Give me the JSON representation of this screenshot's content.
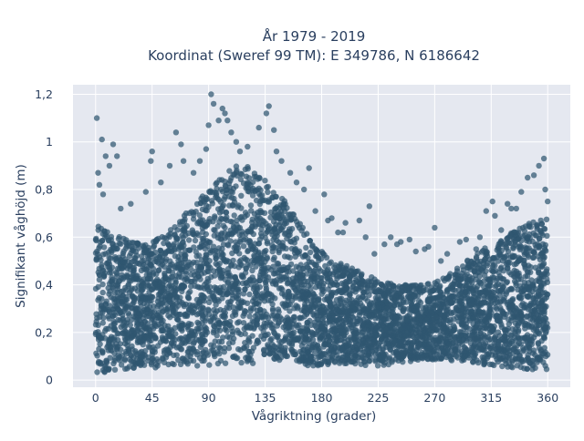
{
  "chart_data": {
    "type": "scatter",
    "title_lines": [
      "År 1979 - 2019",
      "Koordinat (Sweref 99 TM): E 349786, N 6186642"
    ],
    "xlabel": "Vågriktning (grader)",
    "ylabel": "Signifikant våghöjd (m)",
    "xlim": [
      -18,
      378
    ],
    "ylim": [
      -0.03,
      1.24
    ],
    "xticks": [
      0,
      45,
      90,
      135,
      180,
      225,
      270,
      315,
      360
    ],
    "xtick_labels": [
      "0",
      "45",
      "90",
      "135",
      "180",
      "225",
      "270",
      "315",
      "360"
    ],
    "yticks": [
      0,
      0.2,
      0.4,
      0.6,
      0.8,
      1,
      1.2
    ],
    "ytick_labels": [
      "0",
      "0,2",
      "0,4",
      "0,6",
      "0,8",
      "1",
      "1,2"
    ],
    "grid": true,
    "marker_color": "#2f5670",
    "background_color": "#e5e8f0",
    "envelope": {
      "x": [
        0,
        10,
        20,
        30,
        45,
        60,
        75,
        90,
        100,
        110,
        120,
        135,
        150,
        160,
        170,
        180,
        190,
        200,
        210,
        225,
        240,
        255,
        270,
        285,
        300,
        315,
        330,
        345,
        360
      ],
      "y_low": [
        0.03,
        0.03,
        0.04,
        0.05,
        0.05,
        0.06,
        0.06,
        0.06,
        0.07,
        0.07,
        0.07,
        0.07,
        0.07,
        0.07,
        0.06,
        0.06,
        0.06,
        0.06,
        0.06,
        0.06,
        0.07,
        0.08,
        0.08,
        0.08,
        0.07,
        0.06,
        0.05,
        0.04,
        0.03
      ],
      "y_high": [
        0.66,
        0.62,
        0.6,
        0.58,
        0.58,
        0.64,
        0.72,
        0.8,
        0.86,
        0.9,
        0.9,
        0.84,
        0.76,
        0.68,
        0.6,
        0.54,
        0.5,
        0.48,
        0.46,
        0.42,
        0.4,
        0.4,
        0.42,
        0.46,
        0.52,
        0.58,
        0.62,
        0.66,
        0.68
      ]
    },
    "outliers": [
      {
        "x": 1,
        "y": 1.1
      },
      {
        "x": 5,
        "y": 1.01
      },
      {
        "x": 14,
        "y": 0.99
      },
      {
        "x": 2,
        "y": 0.87
      },
      {
        "x": 8,
        "y": 0.94
      },
      {
        "x": 11,
        "y": 0.9
      },
      {
        "x": 17,
        "y": 0.94
      },
      {
        "x": 3,
        "y": 0.82
      },
      {
        "x": 6,
        "y": 0.78
      },
      {
        "x": 20,
        "y": 0.72
      },
      {
        "x": 28,
        "y": 0.74
      },
      {
        "x": 40,
        "y": 0.79
      },
      {
        "x": 44,
        "y": 0.92
      },
      {
        "x": 45,
        "y": 0.96
      },
      {
        "x": 52,
        "y": 0.83
      },
      {
        "x": 59,
        "y": 0.9
      },
      {
        "x": 64,
        "y": 1.04
      },
      {
        "x": 68,
        "y": 0.99
      },
      {
        "x": 70,
        "y": 0.92
      },
      {
        "x": 78,
        "y": 0.87
      },
      {
        "x": 83,
        "y": 0.92
      },
      {
        "x": 88,
        "y": 0.97
      },
      {
        "x": 90,
        "y": 1.07
      },
      {
        "x": 92,
        "y": 1.2
      },
      {
        "x": 94,
        "y": 1.16
      },
      {
        "x": 98,
        "y": 1.09
      },
      {
        "x": 101,
        "y": 1.14
      },
      {
        "x": 103,
        "y": 1.12
      },
      {
        "x": 105,
        "y": 1.09
      },
      {
        "x": 108,
        "y": 1.04
      },
      {
        "x": 112,
        "y": 1.0
      },
      {
        "x": 115,
        "y": 0.96
      },
      {
        "x": 121,
        "y": 0.98
      },
      {
        "x": 130,
        "y": 1.06
      },
      {
        "x": 136,
        "y": 1.12
      },
      {
        "x": 138,
        "y": 1.15
      },
      {
        "x": 142,
        "y": 1.05
      },
      {
        "x": 144,
        "y": 0.96
      },
      {
        "x": 148,
        "y": 0.92
      },
      {
        "x": 155,
        "y": 0.87
      },
      {
        "x": 160,
        "y": 0.83
      },
      {
        "x": 166,
        "y": 0.8
      },
      {
        "x": 170,
        "y": 0.89
      },
      {
        "x": 175,
        "y": 0.71
      },
      {
        "x": 182,
        "y": 0.78
      },
      {
        "x": 185,
        "y": 0.67
      },
      {
        "x": 188,
        "y": 0.68
      },
      {
        "x": 193,
        "y": 0.62
      },
      {
        "x": 197,
        "y": 0.62
      },
      {
        "x": 199,
        "y": 0.66
      },
      {
        "x": 210,
        "y": 0.67
      },
      {
        "x": 215,
        "y": 0.6
      },
      {
        "x": 218,
        "y": 0.73
      },
      {
        "x": 222,
        "y": 0.53
      },
      {
        "x": 230,
        "y": 0.57
      },
      {
        "x": 235,
        "y": 0.6
      },
      {
        "x": 240,
        "y": 0.57
      },
      {
        "x": 243,
        "y": 0.58
      },
      {
        "x": 250,
        "y": 0.59
      },
      {
        "x": 255,
        "y": 0.54
      },
      {
        "x": 262,
        "y": 0.55
      },
      {
        "x": 265,
        "y": 0.56
      },
      {
        "x": 270,
        "y": 0.64
      },
      {
        "x": 275,
        "y": 0.5
      },
      {
        "x": 280,
        "y": 0.53
      },
      {
        "x": 290,
        "y": 0.58
      },
      {
        "x": 295,
        "y": 0.59
      },
      {
        "x": 303,
        "y": 0.55
      },
      {
        "x": 306,
        "y": 0.6
      },
      {
        "x": 311,
        "y": 0.71
      },
      {
        "x": 316,
        "y": 0.75
      },
      {
        "x": 318,
        "y": 0.69
      },
      {
        "x": 323,
        "y": 0.63
      },
      {
        "x": 328,
        "y": 0.74
      },
      {
        "x": 331,
        "y": 0.72
      },
      {
        "x": 335,
        "y": 0.72
      },
      {
        "x": 339,
        "y": 0.79
      },
      {
        "x": 344,
        "y": 0.85
      },
      {
        "x": 349,
        "y": 0.86
      },
      {
        "x": 353,
        "y": 0.9
      },
      {
        "x": 357,
        "y": 0.93
      },
      {
        "x": 358,
        "y": 0.8
      },
      {
        "x": 360,
        "y": 0.75
      }
    ]
  }
}
